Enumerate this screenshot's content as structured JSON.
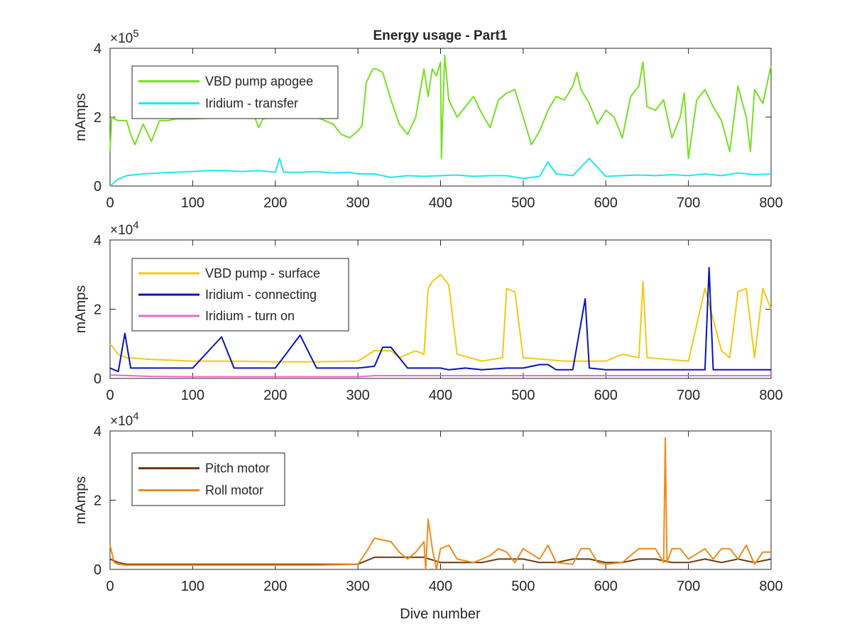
{
  "figure": {
    "title": "Energy usage - Part1",
    "xlabel": "Dive number"
  },
  "chart_data": [
    {
      "type": "line",
      "title": "Energy usage - Part1",
      "xlabel": "",
      "ylabel": "mAmps",
      "exponent": "5",
      "xlim": [
        0,
        800
      ],
      "ylim": [
        0,
        400000
      ],
      "x_ticks": [
        "0",
        "100",
        "200",
        "300",
        "400",
        "500",
        "600",
        "700",
        "800"
      ],
      "y_ticks": [
        "0",
        "2",
        "4"
      ],
      "grid": false,
      "legend_position": "top-left",
      "series": [
        {
          "name": "VBD pump apogee",
          "color": "#77e024",
          "x": [
            0,
            2,
            5,
            10,
            20,
            25,
            30,
            40,
            50,
            60,
            70,
            80,
            100,
            150,
            175,
            180,
            185,
            200,
            250,
            260,
            270,
            280,
            290,
            300,
            305,
            310,
            318,
            322,
            330,
            340,
            350,
            360,
            370,
            380,
            385,
            390,
            395,
            400,
            401,
            405,
            410,
            420,
            430,
            440,
            450,
            460,
            470,
            480,
            490,
            500,
            510,
            520,
            530,
            540,
            550,
            560,
            565,
            570,
            580,
            590,
            600,
            610,
            620,
            630,
            640,
            645,
            650,
            660,
            670,
            680,
            690,
            695,
            700,
            710,
            720,
            730,
            740,
            750,
            760,
            770,
            775,
            780,
            790,
            800
          ],
          "y": [
            100000,
            200000,
            195000,
            190000,
            190000,
            150000,
            120000,
            180000,
            130000,
            190000,
            190000,
            195000,
            195000,
            200000,
            200000,
            170000,
            195000,
            200000,
            200000,
            190000,
            180000,
            150000,
            140000,
            160000,
            175000,
            300000,
            340000,
            340000,
            330000,
            250000,
            180000,
            150000,
            200000,
            340000,
            260000,
            340000,
            320000,
            360000,
            80000,
            380000,
            250000,
            200000,
            230000,
            260000,
            210000,
            170000,
            250000,
            270000,
            280000,
            200000,
            120000,
            160000,
            220000,
            260000,
            250000,
            290000,
            330000,
            280000,
            240000,
            180000,
            220000,
            200000,
            140000,
            260000,
            290000,
            360000,
            230000,
            220000,
            250000,
            140000,
            200000,
            270000,
            80000,
            250000,
            280000,
            230000,
            190000,
            100000,
            290000,
            200000,
            100000,
            280000,
            240000,
            350000
          ]
        },
        {
          "name": "Iridium - transfer",
          "color": "#1ee8f2",
          "x": [
            0,
            10,
            20,
            40,
            60,
            80,
            100,
            120,
            140,
            160,
            180,
            200,
            205,
            210,
            230,
            250,
            270,
            290,
            300,
            320,
            340,
            360,
            380,
            400,
            420,
            440,
            460,
            480,
            500,
            520,
            530,
            540,
            560,
            580,
            600,
            620,
            640,
            660,
            680,
            700,
            720,
            740,
            760,
            780,
            800
          ],
          "y": [
            0,
            20000,
            30000,
            35000,
            38000,
            40000,
            42000,
            45000,
            45000,
            42000,
            45000,
            40000,
            80000,
            40000,
            40000,
            42000,
            38000,
            40000,
            35000,
            35000,
            25000,
            30000,
            28000,
            30000,
            32000,
            28000,
            30000,
            30000,
            22000,
            28000,
            70000,
            35000,
            30000,
            80000,
            28000,
            30000,
            32000,
            30000,
            33000,
            30000,
            35000,
            30000,
            38000,
            33000,
            35000
          ]
        }
      ]
    },
    {
      "type": "line",
      "title": "",
      "xlabel": "",
      "ylabel": "mAmps",
      "exponent": "4",
      "xlim": [
        0,
        800
      ],
      "ylim": [
        0,
        40000
      ],
      "x_ticks": [
        "0",
        "100",
        "200",
        "300",
        "400",
        "500",
        "600",
        "700",
        "800"
      ],
      "y_ticks": [
        "0",
        "2",
        "4"
      ],
      "grid": false,
      "legend_position": "top-left",
      "series": [
        {
          "name": "VBD pump - surface",
          "color": "#f5c813",
          "x": [
            0,
            10,
            20,
            50,
            100,
            150,
            200,
            250,
            300,
            320,
            340,
            350,
            370,
            380,
            385,
            390,
            400,
            410,
            420,
            450,
            475,
            480,
            490,
            500,
            550,
            600,
            620,
            640,
            645,
            650,
            700,
            720,
            740,
            750,
            760,
            770,
            780,
            790,
            800
          ],
          "y": [
            10000,
            7000,
            6000,
            5500,
            5000,
            5000,
            4800,
            4800,
            5000,
            8000,
            8000,
            6000,
            8000,
            7000,
            26000,
            28000,
            30000,
            27000,
            7000,
            5000,
            6000,
            26000,
            25000,
            6000,
            5000,
            5000,
            7000,
            6000,
            28000,
            6000,
            5000,
            26000,
            8000,
            6000,
            25000,
            26000,
            6000,
            26000,
            20000
          ]
        },
        {
          "name": "Iridium - connecting",
          "color": "#0a14b5",
          "x": [
            0,
            10,
            18,
            25,
            50,
            100,
            135,
            150,
            200,
            230,
            250,
            300,
            320,
            330,
            340,
            360,
            380,
            400,
            410,
            430,
            450,
            480,
            500,
            520,
            530,
            540,
            560,
            575,
            580,
            600,
            620,
            640,
            660,
            680,
            700,
            720,
            725,
            730,
            740,
            760,
            780,
            800
          ],
          "y": [
            3000,
            2000,
            13000,
            3000,
            3000,
            3000,
            12000,
            3000,
            3000,
            12500,
            3000,
            3000,
            3500,
            9000,
            9000,
            3000,
            3000,
            3000,
            2500,
            3000,
            2500,
            3000,
            3000,
            4000,
            4000,
            2500,
            2500,
            23000,
            3000,
            2500,
            2500,
            2500,
            2500,
            2500,
            2500,
            2500,
            32000,
            2500,
            2500,
            2500,
            2500,
            2500
          ]
        },
        {
          "name": "Iridium - turn on",
          "color": "#e868c3",
          "x": [
            0,
            50,
            100,
            150,
            200,
            250,
            300,
            320,
            400,
            500,
            600,
            700,
            800
          ],
          "y": [
            1000,
            600,
            500,
            500,
            500,
            500,
            500,
            800,
            800,
            800,
            800,
            800,
            800
          ]
        }
      ]
    },
    {
      "type": "line",
      "title": "",
      "xlabel": "Dive number",
      "ylabel": "mAmps",
      "exponent": "4",
      "xlim": [
        0,
        800
      ],
      "ylim": [
        0,
        40000
      ],
      "x_ticks": [
        "0",
        "100",
        "200",
        "300",
        "400",
        "500",
        "600",
        "700",
        "800"
      ],
      "y_ticks": [
        "0",
        "2",
        "4"
      ],
      "grid": false,
      "legend_position": "top-left",
      "series": [
        {
          "name": "Pitch motor",
          "color": "#6e3a11",
          "x": [
            0,
            10,
            20,
            50,
            100,
            150,
            200,
            250,
            300,
            320,
            340,
            360,
            380,
            400,
            420,
            450,
            470,
            500,
            520,
            540,
            560,
            580,
            600,
            620,
            640,
            660,
            680,
            700,
            720,
            740,
            760,
            780,
            800
          ],
          "y": [
            3000,
            2000,
            1500,
            1500,
            1500,
            1500,
            1500,
            1500,
            1500,
            3500,
            3500,
            3500,
            3500,
            2000,
            2000,
            2000,
            3000,
            3000,
            2000,
            2000,
            3000,
            3000,
            2000,
            2000,
            3000,
            3000,
            2000,
            2000,
            3000,
            2000,
            3000,
            2000,
            3000
          ]
        },
        {
          "name": "Roll motor",
          "color": "#ee8c1a",
          "x": [
            0,
            5,
            10,
            20,
            50,
            100,
            150,
            200,
            250,
            300,
            310,
            320,
            340,
            350,
            360,
            370,
            380,
            382,
            385,
            390,
            395,
            400,
            410,
            420,
            440,
            460,
            470,
            480,
            490,
            500,
            520,
            530,
            540,
            560,
            570,
            580,
            590,
            600,
            620,
            640,
            660,
            670,
            672,
            674,
            680,
            690,
            700,
            720,
            730,
            740,
            750,
            760,
            770,
            780,
            790,
            800
          ],
          "y": [
            7000,
            2000,
            1500,
            1200,
            1200,
            1200,
            1200,
            1200,
            1200,
            1500,
            5000,
            9000,
            8000,
            5000,
            3000,
            5000,
            8000,
            0,
            14500,
            6000,
            0,
            6000,
            7000,
            3000,
            2000,
            4000,
            6000,
            5000,
            2000,
            6000,
            3000,
            7000,
            2000,
            1500,
            6000,
            6000,
            2000,
            1500,
            2000,
            6000,
            6000,
            2000,
            38000,
            2000,
            6000,
            6000,
            3000,
            6000,
            3000,
            6000,
            6000,
            3000,
            7000,
            1500,
            5000,
            5000
          ]
        }
      ]
    }
  ]
}
